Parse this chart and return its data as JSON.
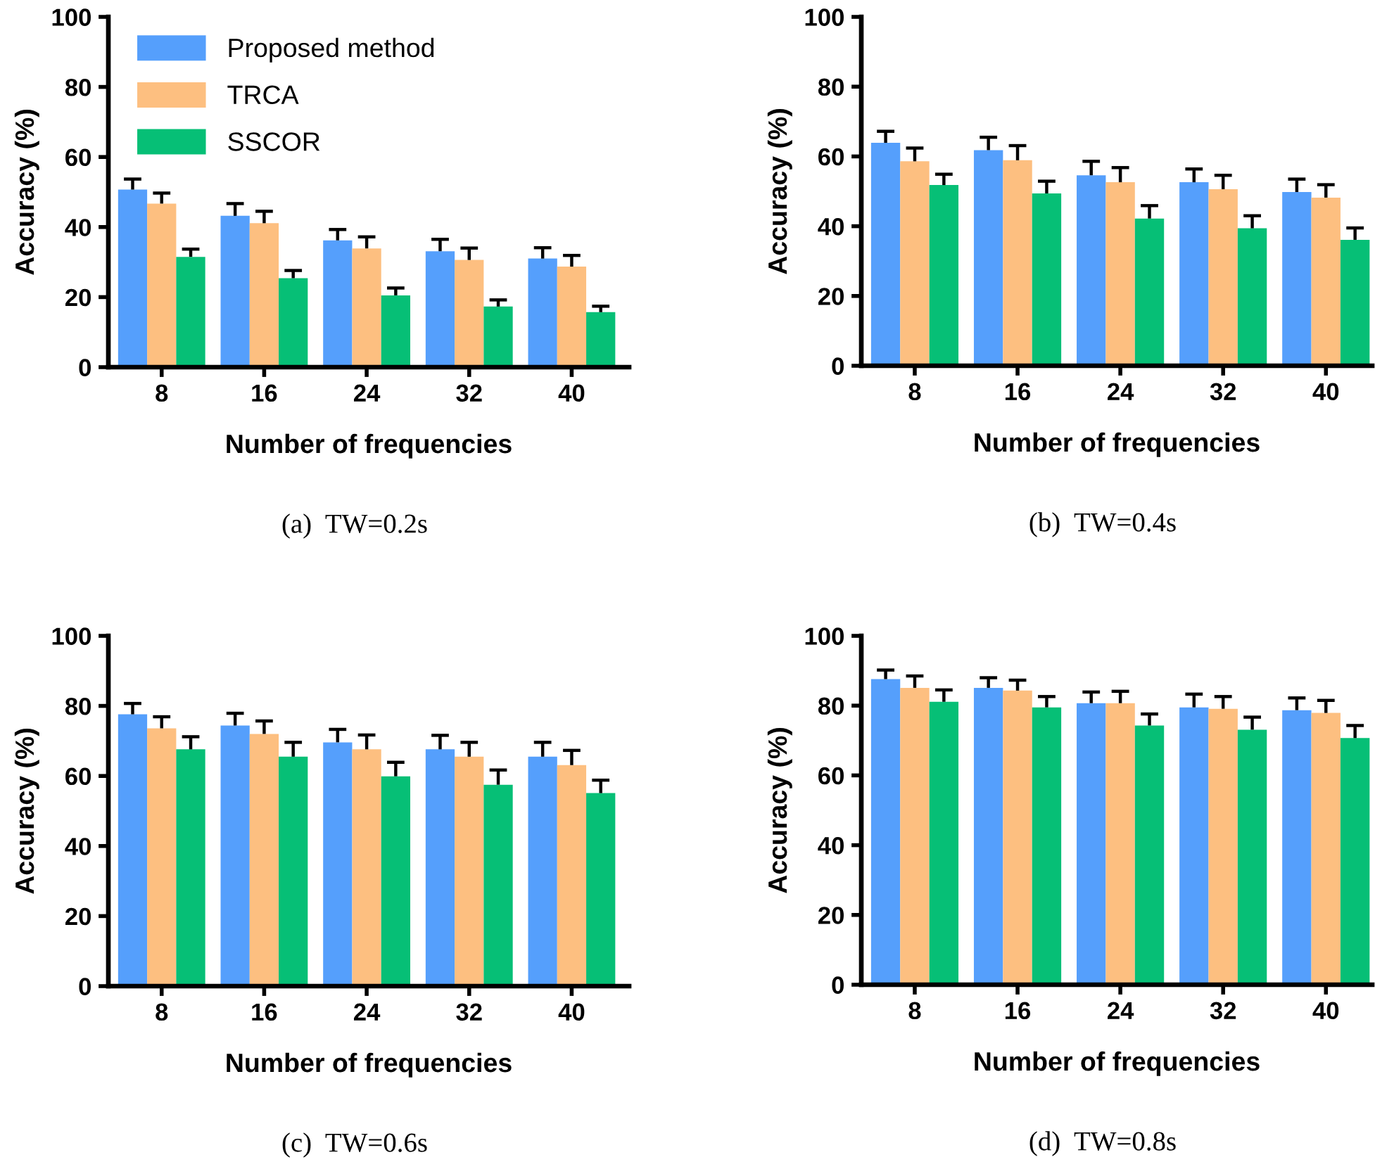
{
  "chart_data": [
    {
      "type": "bar",
      "title": "(a)  TW=0.2s",
      "xlabel": "Number of frequencies",
      "ylabel": "Accuracy (%)",
      "categories": [
        "8",
        "16",
        "24",
        "32",
        "40"
      ],
      "ylim": [
        0,
        100
      ],
      "yticks": [
        0,
        20,
        40,
        60,
        80,
        100
      ],
      "grid": false,
      "legend": "top left",
      "series": [
        {
          "name": "Proposed method",
          "color": "#559ffc",
          "values": [
            50.7,
            43.2,
            36.2,
            33.1,
            31.0
          ],
          "errors": [
            [
              50.7,
              53.7
            ],
            [
              43.2,
              46.7
            ],
            [
              36.2,
              39.3
            ],
            [
              33.1,
              36.5
            ],
            [
              31.0,
              34.1
            ]
          ]
        },
        {
          "name": "TRCA",
          "color": "#fdbf80",
          "values": [
            46.7,
            41.1,
            33.9,
            30.6,
            28.7
          ],
          "errors": [
            [
              46.7,
              49.7
            ],
            [
              41.1,
              44.5
            ],
            [
              33.9,
              37.2
            ],
            [
              30.6,
              34.0
            ],
            [
              28.7,
              31.9
            ]
          ]
        },
        {
          "name": "SSCOR",
          "color": "#06bf76",
          "values": [
            31.5,
            25.4,
            20.5,
            17.3,
            15.7
          ],
          "errors": [
            [
              31.5,
              33.7
            ],
            [
              25.4,
              27.6
            ],
            [
              20.5,
              22.6
            ],
            [
              17.3,
              19.2
            ],
            [
              15.7,
              17.4
            ]
          ]
        }
      ]
    },
    {
      "type": "bar",
      "title": "(b)  TW=0.4s",
      "xlabel": "Number of frequencies",
      "ylabel": "Accuracy (%)",
      "categories": [
        "8",
        "16",
        "24",
        "32",
        "40"
      ],
      "ylim": [
        0,
        100
      ],
      "yticks": [
        0,
        20,
        40,
        60,
        80,
        100
      ],
      "grid": false,
      "series": [
        {
          "color": "#559ffc",
          "values": [
            63.9,
            61.8,
            54.6,
            52.6,
            49.8
          ],
          "errors": [
            [
              63.9,
              67.2
            ],
            [
              61.8,
              65.5
            ],
            [
              54.6,
              58.6
            ],
            [
              52.6,
              56.4
            ],
            [
              49.8,
              53.5
            ]
          ]
        },
        {
          "color": "#fdbf80",
          "values": [
            58.6,
            58.9,
            52.6,
            50.6,
            48.2
          ],
          "errors": [
            [
              58.6,
              62.4
            ],
            [
              58.9,
              63.1
            ],
            [
              52.6,
              56.8
            ],
            [
              50.6,
              54.6
            ],
            [
              48.2,
              51.9
            ]
          ]
        },
        {
          "color": "#06bf76",
          "values": [
            51.8,
            49.4,
            42.2,
            39.4,
            36.1
          ],
          "errors": [
            [
              51.8,
              54.9
            ],
            [
              49.4,
              52.9
            ],
            [
              42.2,
              45.9
            ],
            [
              39.4,
              43.0
            ],
            [
              36.1,
              39.5
            ]
          ]
        }
      ]
    },
    {
      "type": "bar",
      "title": "(c)  TW=0.6s",
      "xlabel": "Number of frequencies",
      "ylabel": "Accuracy (%)",
      "categories": [
        "8",
        "16",
        "24",
        "32",
        "40"
      ],
      "ylim": [
        0,
        100
      ],
      "yticks": [
        0,
        20,
        40,
        60,
        80,
        100
      ],
      "grid": false,
      "series": [
        {
          "color": "#559ffc",
          "values": [
            77.6,
            74.4,
            69.6,
            67.6,
            65.5
          ],
          "errors": [
            [
              77.6,
              80.7
            ],
            [
              74.4,
              77.9
            ],
            [
              69.6,
              73.3
            ],
            [
              67.6,
              71.6
            ],
            [
              65.5,
              69.6
            ]
          ]
        },
        {
          "color": "#fdbf80",
          "values": [
            73.6,
            72.0,
            67.6,
            65.5,
            63.1
          ],
          "errors": [
            [
              73.6,
              76.9
            ],
            [
              72.0,
              75.7
            ],
            [
              67.6,
              71.7
            ],
            [
              65.5,
              69.6
            ],
            [
              63.1,
              67.3
            ]
          ]
        },
        {
          "color": "#06bf76",
          "values": [
            67.6,
            65.5,
            59.9,
            57.5,
            55.1
          ],
          "errors": [
            [
              67.6,
              71.2
            ],
            [
              65.5,
              69.6
            ],
            [
              59.9,
              63.9
            ],
            [
              57.5,
              61.7
            ],
            [
              55.1,
              58.8
            ]
          ]
        }
      ]
    },
    {
      "type": "bar",
      "title": "(d)  TW=0.8s",
      "xlabel": "Number of frequencies",
      "ylabel": "Accuracy (%)",
      "categories": [
        "8",
        "16",
        "24",
        "32",
        "40"
      ],
      "ylim": [
        0,
        100
      ],
      "yticks": [
        0,
        20,
        40,
        60,
        80,
        100
      ],
      "grid": false,
      "series": [
        {
          "color": "#559ffc",
          "values": [
            87.6,
            85.1,
            80.7,
            79.5,
            78.7
          ],
          "errors": [
            [
              87.6,
              90.2
            ],
            [
              85.1,
              88.0
            ],
            [
              80.7,
              83.9
            ],
            [
              79.5,
              83.3
            ],
            [
              78.7,
              82.2
            ]
          ]
        },
        {
          "color": "#fdbf80",
          "values": [
            85.1,
            84.3,
            80.7,
            79.1,
            77.9
          ],
          "errors": [
            [
              85.1,
              88.5
            ],
            [
              84.3,
              87.3
            ],
            [
              80.7,
              84.1
            ],
            [
              79.1,
              82.6
            ],
            [
              77.9,
              81.5
            ]
          ]
        },
        {
          "color": "#06bf76",
          "values": [
            81.1,
            79.5,
            74.3,
            73.1,
            70.7
          ],
          "errors": [
            [
              81.1,
              84.5
            ],
            [
              79.5,
              82.6
            ],
            [
              74.3,
              77.6
            ],
            [
              73.1,
              76.7
            ],
            [
              70.7,
              74.3
            ]
          ]
        }
      ]
    }
  ]
}
